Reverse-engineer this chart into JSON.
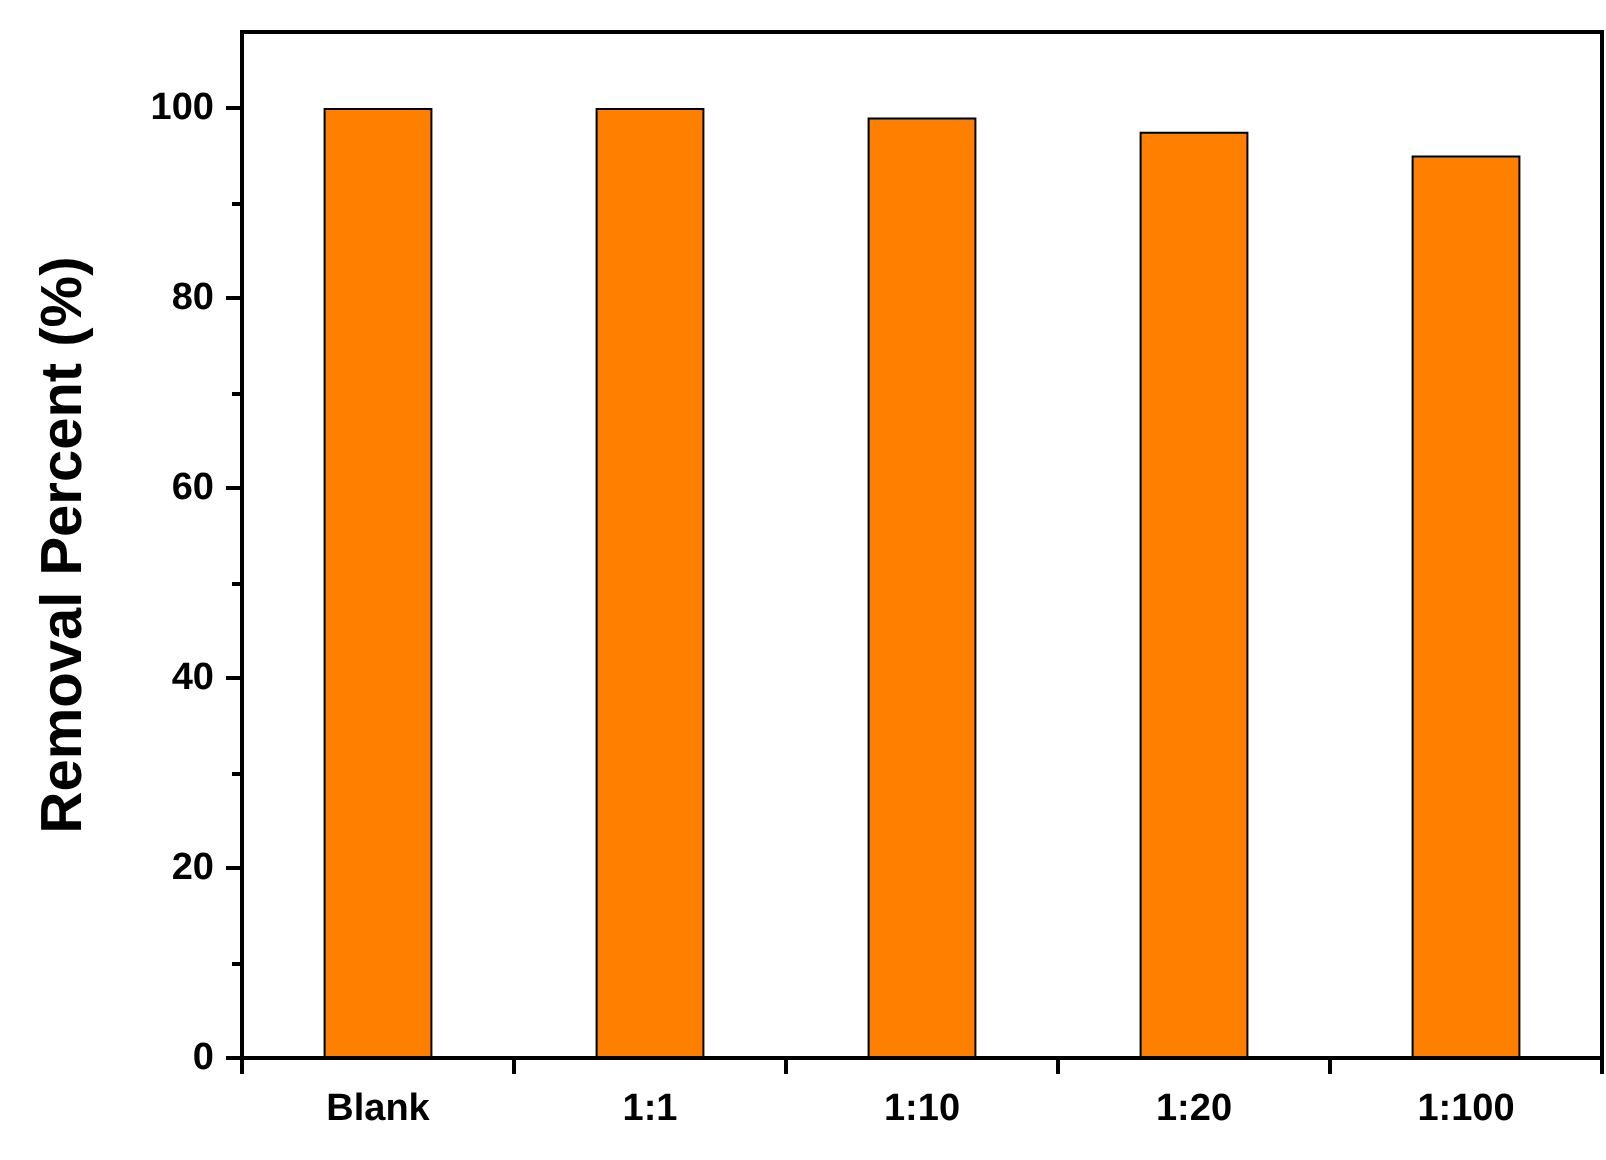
{
  "chart_data": {
    "type": "bar",
    "ylabel": "Removal Percent (%)",
    "categories": [
      "Blank",
      "1:1",
      "1:10",
      "1:20",
      "1:100"
    ],
    "values": [
      100,
      100,
      99,
      97.5,
      95
    ],
    "color": "#ff8000",
    "ylim": [
      0,
      108
    ],
    "yticks": [
      0,
      20,
      40,
      60,
      80,
      100
    ],
    "grid": false
  }
}
